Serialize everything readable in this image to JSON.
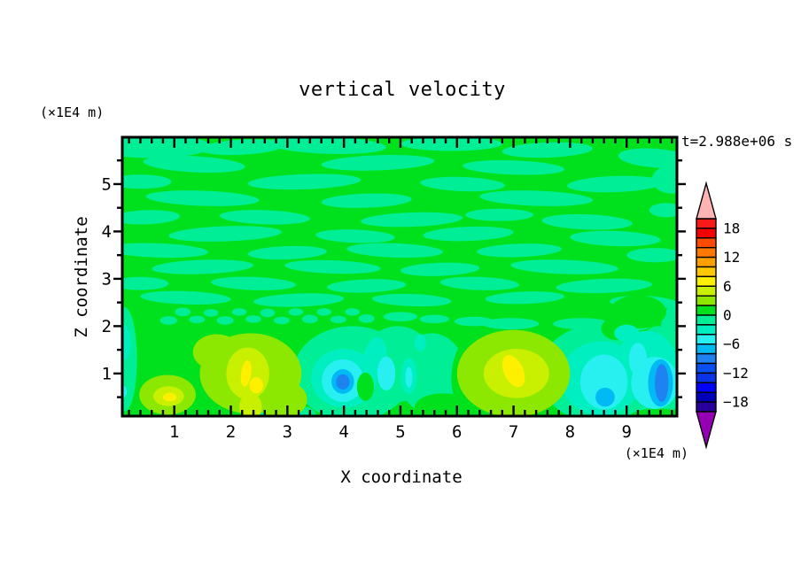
{
  "chart_data": {
    "type": "heatmap",
    "subtype": "filled-contour",
    "title": "vertical velocity",
    "time_annotation": "t=2.988e+06 s",
    "xlabel": "X coordinate",
    "ylabel": "Z coordinate",
    "x_unit": "(×1E4 m)",
    "z_unit": "(×1E4 m)",
    "x_range": [
      0.08,
      9.89
    ],
    "z_range": [
      0.1,
      5.99
    ],
    "x_major_ticks": [
      1,
      2,
      3,
      4,
      5,
      6,
      7,
      8,
      9
    ],
    "x_minor_step": 0.2,
    "z_major_ticks": [
      1,
      2,
      3,
      4,
      5
    ],
    "z_minor_step": 0.5,
    "grid": false,
    "legend_position": "right-colorbar",
    "colorbar": {
      "level_min": -20,
      "level_max": 20,
      "contour_interval": 2,
      "labels": [
        {
          "v": 18,
          "text": "18"
        },
        {
          "v": 12,
          "text": "12"
        },
        {
          "v": 6,
          "text": "6"
        },
        {
          "v": 0,
          "text": "0"
        },
        {
          "v": -6,
          "text": "−6"
        },
        {
          "v": -12,
          "text": "−12"
        },
        {
          "v": -18,
          "text": "−18"
        }
      ],
      "colors_top_to_bottom": [
        "#fa1919",
        "#f50000",
        "#ff4b00",
        "#ff7800",
        "#ffa000",
        "#ffc800",
        "#fff000",
        "#c8f000",
        "#8ce800",
        "#00e11e",
        "#00ee96",
        "#00efc0",
        "#28f0f0",
        "#00b9f5",
        "#1e82f0",
        "#0a50f0",
        "#0a32e6",
        "#0000ff",
        "#0000b9",
        "#28009e"
      ],
      "over_color": "#ffb4b4",
      "under_color": "#9600b4"
    },
    "features": {
      "description": "Streaky ±2 bands of vertical velocity above z≈2×1E4 m; convective cells below.",
      "updrafts": [
        {
          "x": 0.9,
          "z": 0.5,
          "peak_band": "6 to 8"
        },
        {
          "x": 2.3,
          "z": 1.0,
          "peak_band": "6 to 8"
        },
        {
          "x": 7.0,
          "z": 1.0,
          "peak_band": "6 to 8"
        }
      ],
      "downdrafts": [
        {
          "x": 4.0,
          "z": 0.8,
          "peak_band": "-10 to -8"
        },
        {
          "x": 8.6,
          "z": 0.8,
          "peak_band": "-8 to -6"
        },
        {
          "x": 9.6,
          "z": 0.8,
          "peak_band": "-10 to -8"
        }
      ]
    },
    "field": {
      "base_color_index": 9,
      "palette": {
        "g0": 9,
        "m2": 10,
        "m4": 11,
        "m6": 12,
        "m8": 13,
        "m10": 14,
        "p2": 8,
        "p4": 7,
        "p6": 6
      },
      "shapes": [
        [
          "m2",
          0.6,
          5.8,
          1.05,
          0.25,
          0
        ],
        [
          "m2",
          2.2,
          5.78,
          0.75,
          0.16,
          -3
        ],
        [
          "m2",
          3.7,
          5.82,
          1.05,
          0.18,
          2
        ],
        [
          "m2",
          5.9,
          5.85,
          0.9,
          0.15,
          0
        ],
        [
          "m2",
          7.6,
          5.72,
          0.8,
          0.16,
          -2
        ],
        [
          "m2",
          9.5,
          5.55,
          0.65,
          0.2,
          4
        ],
        [
          "m2",
          1.35,
          5.42,
          0.9,
          0.17,
          3
        ],
        [
          "m2",
          4.6,
          5.45,
          1.0,
          0.16,
          -2
        ],
        [
          "m2",
          7.0,
          5.35,
          0.9,
          0.15,
          2
        ],
        [
          "m2",
          9.8,
          5.1,
          0.35,
          0.3,
          0
        ],
        [
          "m2",
          0.4,
          5.05,
          0.55,
          0.15,
          0
        ],
        [
          "m2",
          3.3,
          5.05,
          1.0,
          0.16,
          -2
        ],
        [
          "m2",
          6.1,
          5.0,
          0.75,
          0.15,
          2
        ],
        [
          "m2",
          8.8,
          5.0,
          0.85,
          0.17,
          -2
        ],
        [
          "m2",
          1.5,
          4.7,
          1.0,
          0.16,
          2
        ],
        [
          "m2",
          4.4,
          4.65,
          0.8,
          0.15,
          -2
        ],
        [
          "m2",
          7.4,
          4.7,
          1.0,
          0.16,
          2
        ],
        [
          "m2",
          0.5,
          4.3,
          0.6,
          0.15,
          -2
        ],
        [
          "m2",
          2.6,
          4.3,
          0.8,
          0.15,
          2
        ],
        [
          "m2",
          5.2,
          4.25,
          0.9,
          0.15,
          -2
        ],
        [
          "m2",
          6.75,
          4.35,
          0.6,
          0.13,
          0
        ],
        [
          "m2",
          8.3,
          4.2,
          0.8,
          0.16,
          2
        ],
        [
          "m2",
          9.7,
          4.45,
          0.3,
          0.15,
          0
        ],
        [
          "m2",
          1.9,
          3.95,
          1.0,
          0.16,
          -2
        ],
        [
          "m2",
          4.2,
          3.9,
          0.7,
          0.14,
          2
        ],
        [
          "m2",
          6.2,
          3.95,
          0.8,
          0.15,
          -2
        ],
        [
          "m2",
          8.8,
          3.85,
          0.8,
          0.16,
          2
        ],
        [
          "m2",
          0.7,
          3.6,
          0.9,
          0.15,
          2
        ],
        [
          "m2",
          3.0,
          3.55,
          0.7,
          0.14,
          -2
        ],
        [
          "m2",
          4.9,
          3.6,
          0.85,
          0.15,
          2
        ],
        [
          "m2",
          7.1,
          3.6,
          0.75,
          0.14,
          -2
        ],
        [
          "m2",
          9.5,
          3.5,
          0.5,
          0.15,
          0
        ],
        [
          "m2",
          1.5,
          3.25,
          0.9,
          0.15,
          -2
        ],
        [
          "m2",
          3.8,
          3.25,
          0.85,
          0.14,
          2
        ],
        [
          "m2",
          5.7,
          3.2,
          0.7,
          0.14,
          -2
        ],
        [
          "m2",
          7.9,
          3.25,
          0.95,
          0.15,
          2
        ],
        [
          "m2",
          0.4,
          2.9,
          0.5,
          0.14,
          0
        ],
        [
          "m2",
          2.4,
          2.9,
          0.75,
          0.14,
          2
        ],
        [
          "m2",
          4.4,
          2.85,
          0.7,
          0.14,
          -2
        ],
        [
          "m2",
          6.4,
          2.9,
          0.7,
          0.14,
          2
        ],
        [
          "m2",
          8.6,
          2.85,
          0.85,
          0.15,
          -2
        ],
        [
          "m2",
          1.2,
          2.6,
          0.8,
          0.14,
          2
        ],
        [
          "m2",
          3.2,
          2.55,
          0.8,
          0.14,
          -2
        ],
        [
          "m2",
          5.2,
          2.55,
          0.7,
          0.13,
          2
        ],
        [
          "m2",
          7.2,
          2.6,
          0.7,
          0.13,
          -2
        ],
        [
          "m2",
          9.3,
          2.5,
          0.6,
          0.14,
          2
        ],
        [
          "m2",
          0.9,
          2.12,
          0.15,
          0.09,
          0
        ],
        [
          "m2",
          1.15,
          2.3,
          0.14,
          0.09,
          0
        ],
        [
          "m2",
          1.4,
          2.14,
          0.14,
          0.08,
          0
        ],
        [
          "m2",
          1.65,
          2.28,
          0.13,
          0.08,
          0
        ],
        [
          "m2",
          1.9,
          2.12,
          0.15,
          0.09,
          0
        ],
        [
          "m2",
          2.15,
          2.3,
          0.13,
          0.08,
          0
        ],
        [
          "m2",
          2.4,
          2.15,
          0.14,
          0.08,
          0
        ],
        [
          "m2",
          2.65,
          2.28,
          0.13,
          0.09,
          0
        ],
        [
          "m2",
          2.9,
          2.12,
          0.14,
          0.08,
          0
        ],
        [
          "m2",
          3.15,
          2.3,
          0.13,
          0.08,
          0
        ],
        [
          "m2",
          3.4,
          2.15,
          0.14,
          0.09,
          0
        ],
        [
          "m2",
          3.65,
          2.3,
          0.13,
          0.08,
          0
        ],
        [
          "m2",
          3.9,
          2.14,
          0.14,
          0.08,
          0
        ],
        [
          "m2",
          4.15,
          2.3,
          0.13,
          0.08,
          0
        ],
        [
          "m2",
          4.4,
          2.16,
          0.14,
          0.09,
          0
        ],
        [
          "m2",
          5.0,
          2.2,
          0.3,
          0.1,
          0
        ],
        [
          "m2",
          5.6,
          2.15,
          0.26,
          0.09,
          0
        ],
        [
          "m2",
          6.3,
          2.1,
          0.35,
          0.1,
          0
        ],
        [
          "m2",
          6.95,
          2.05,
          0.5,
          0.12,
          0
        ],
        [
          "m2",
          8.2,
          2.05,
          0.5,
          0.12,
          0
        ],
        [
          "m2",
          9.0,
          2.0,
          0.4,
          0.12,
          0
        ],
        [
          "m2",
          4.15,
          1.0,
          1.05,
          1.0,
          0
        ],
        [
          "m2",
          4.95,
          1.2,
          0.65,
          0.8,
          0
        ],
        [
          "m2",
          5.55,
          1.0,
          0.6,
          0.85,
          0
        ],
        [
          "m2",
          8.55,
          1.0,
          1.1,
          1.05,
          0
        ],
        [
          "m2",
          9.55,
          1.0,
          0.45,
          1.0,
          0
        ],
        [
          "m2",
          9.85,
          1.9,
          0.25,
          0.55,
          0
        ],
        [
          "m2",
          0.12,
          1.3,
          0.22,
          1.1,
          0
        ],
        [
          "m2",
          3.0,
          0.15,
          0.5,
          0.2,
          0
        ],
        [
          "m2",
          6.3,
          0.15,
          0.3,
          0.2,
          0
        ],
        [
          "g0",
          6.45,
          0.9,
          0.55,
          1.0,
          0
        ],
        [
          "g0",
          9.2,
          2.3,
          0.5,
          0.35,
          0
        ],
        [
          "g0",
          8.85,
          1.95,
          0.3,
          0.25,
          0
        ],
        [
          "g0",
          9.55,
          0.08,
          0.5,
          0.18,
          0
        ],
        [
          "g0",
          5.75,
          0.28,
          0.5,
          0.3,
          0
        ],
        [
          "m4",
          4.0,
          0.9,
          0.58,
          0.62,
          0
        ],
        [
          "m4",
          4.55,
          1.35,
          0.2,
          0.42,
          10
        ],
        [
          "m4",
          5.15,
          0.95,
          0.14,
          0.38,
          0
        ],
        [
          "m4",
          8.55,
          0.9,
          0.72,
          0.78,
          0
        ],
        [
          "m4",
          9.35,
          1.15,
          0.55,
          0.75,
          0
        ],
        [
          "m4",
          9.0,
          1.85,
          0.22,
          0.18,
          0
        ],
        [
          "m4",
          0.1,
          1.65,
          0.13,
          0.38,
          0
        ],
        [
          "m4",
          2.95,
          0.12,
          0.3,
          0.14,
          0
        ],
        [
          "m4",
          5.35,
          1.65,
          0.1,
          0.18,
          0
        ],
        [
          "m6",
          3.98,
          0.85,
          0.37,
          0.45,
          0
        ],
        [
          "m6",
          4.75,
          1.0,
          0.16,
          0.36,
          0
        ],
        [
          "m6",
          8.6,
          0.82,
          0.42,
          0.58,
          0
        ],
        [
          "m6",
          9.2,
          1.3,
          0.16,
          0.35,
          0
        ],
        [
          "m6",
          9.5,
          0.8,
          0.42,
          0.55,
          0
        ],
        [
          "m6",
          0.09,
          0.62,
          0.07,
          0.13,
          0
        ],
        [
          "m6",
          5.15,
          0.92,
          0.06,
          0.22,
          0
        ],
        [
          "g0",
          4.38,
          0.72,
          0.15,
          0.3,
          0
        ],
        [
          "m8",
          3.98,
          0.83,
          0.2,
          0.26,
          0
        ],
        [
          "m8",
          9.6,
          0.8,
          0.22,
          0.5,
          0
        ],
        [
          "m8",
          8.62,
          0.5,
          0.17,
          0.2,
          0
        ],
        [
          "m10",
          3.98,
          0.82,
          0.12,
          0.16,
          0
        ],
        [
          "m10",
          9.62,
          0.8,
          0.12,
          0.4,
          0
        ],
        [
          "p2",
          2.35,
          1.0,
          0.9,
          0.85,
          0
        ],
        [
          "p2",
          1.75,
          1.45,
          0.42,
          0.38,
          0
        ],
        [
          "p2",
          2.9,
          0.45,
          0.45,
          0.4,
          0
        ],
        [
          "p2",
          0.88,
          0.55,
          0.5,
          0.42,
          0
        ],
        [
          "p2",
          7.0,
          1.0,
          1.0,
          0.92,
          0
        ],
        [
          "p4",
          2.3,
          1.0,
          0.38,
          0.55,
          0
        ],
        [
          "p4",
          2.35,
          0.3,
          0.2,
          0.28,
          0
        ],
        [
          "p4",
          0.9,
          0.52,
          0.27,
          0.21,
          0
        ],
        [
          "p4",
          7.05,
          1.0,
          0.58,
          0.52,
          0
        ],
        [
          "p6",
          2.27,
          1.0,
          0.09,
          0.28,
          8
        ],
        [
          "p6",
          2.45,
          0.75,
          0.12,
          0.17,
          0
        ],
        [
          "p6",
          0.92,
          0.5,
          0.12,
          0.09,
          0
        ],
        [
          "p6",
          7.0,
          1.05,
          0.17,
          0.36,
          -25
        ]
      ]
    }
  }
}
